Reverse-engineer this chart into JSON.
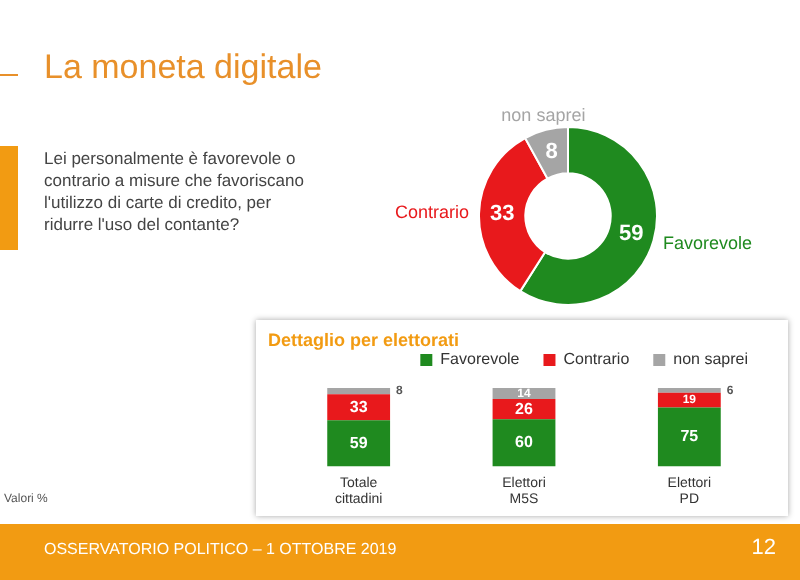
{
  "chart_data": [
    {
      "type": "donut",
      "title": "La moneta digitale",
      "subtitle": "Lei personalmente è favorevole o contrario a misure che favoriscano l'utilizzo di carte di credito, per ridurre l'uso del contante?",
      "categories": [
        "Favorevole",
        "Contrario",
        "non saprei"
      ],
      "values": [
        59,
        33,
        8
      ],
      "colors": [
        "#1f8a1f",
        "#e8191c",
        "#a5a5a5"
      ],
      "data_labels": true,
      "legend": false,
      "annotations": [
        "OSSERVATORIO POLITICO – 1 OTTOBRE 2019",
        "12"
      ]
    },
    {
      "type": "bar",
      "title": "Dettaglio per elettorati",
      "stacked": true,
      "categories": [
        "Totale cittadini",
        "Elettori M5S",
        "Elettori PD"
      ],
      "series": [
        {
          "name": "Favorevole",
          "color": "#1f8a1f",
          "values": [
            59,
            60,
            75
          ]
        },
        {
          "name": "Contrario",
          "color": "#e8191c",
          "values": [
            33,
            26,
            19
          ]
        },
        {
          "name": "non saprei",
          "color": "#a5a5a5",
          "values": [
            8,
            14,
            6
          ]
        }
      ],
      "ylim": [
        0,
        100
      ],
      "tick_labels": "x",
      "grid": false,
      "legend": "top",
      "data_labels": true,
      "annotations": [
        "Valori %"
      ]
    }
  ]
}
